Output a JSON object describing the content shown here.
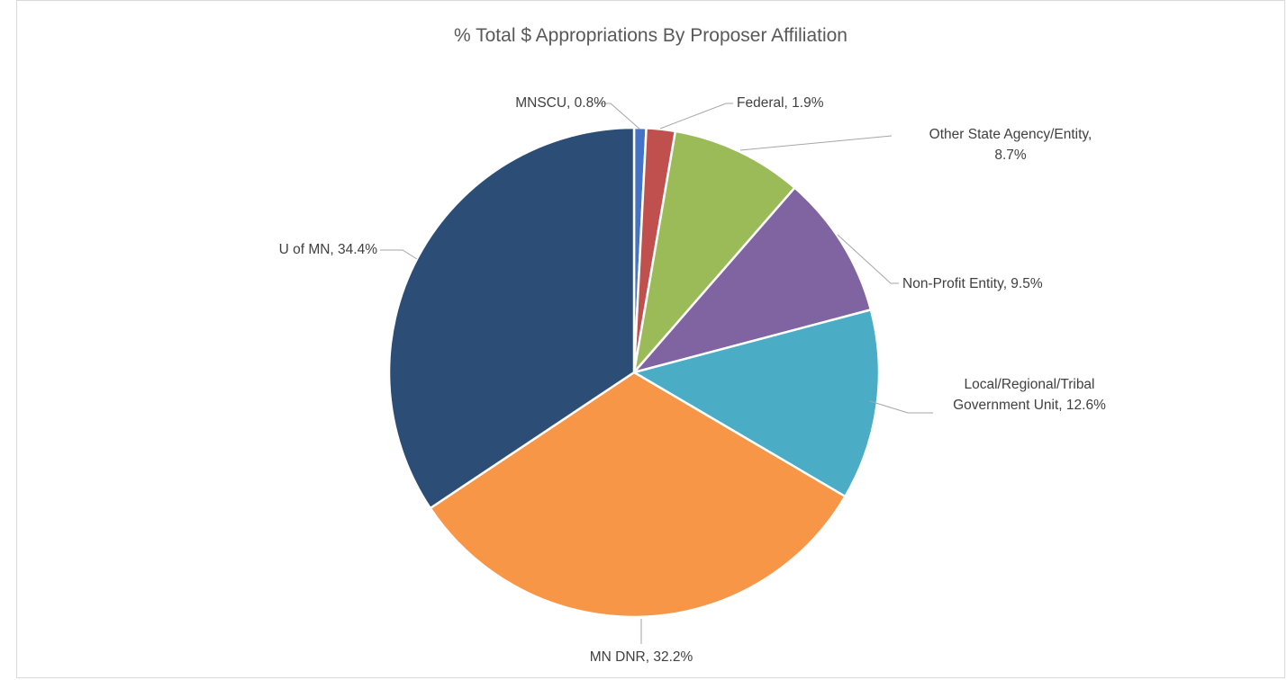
{
  "chart_data": {
    "type": "pie",
    "title": "% Total $ Appropriations By Proposer Affiliation",
    "slices": [
      {
        "label": "MNSCU",
        "value": 0.8,
        "display": "MNSCU, 0.8%",
        "color": "#4472c4"
      },
      {
        "label": "Federal",
        "value": 1.9,
        "display": "Federal, 1.9%",
        "color": "#c0504d"
      },
      {
        "label": "Other State Agency/Entity",
        "value": 8.7,
        "display": "Other State Agency/Entity, 8.7%",
        "color": "#9bbb59"
      },
      {
        "label": "Non-Profit Entity",
        "value": 9.5,
        "display": "Non-Profit Entity, 9.5%",
        "color": "#8064a2"
      },
      {
        "label": "Local/Regional/Tribal Government Unit",
        "value": 12.6,
        "display": "Local/Regional/Tribal Government Unit, 12.6%",
        "color": "#4bacc6"
      },
      {
        "label": "MN DNR",
        "value": 32.2,
        "display": "MN DNR, 32.2%",
        "color": "#f79646"
      },
      {
        "label": "U of MN",
        "value": 34.4,
        "display": "U of MN, 34.4%",
        "color": "#2c4d75"
      }
    ],
    "legend": "none",
    "start_angle": "12 o'clock",
    "direction": "clockwise"
  }
}
